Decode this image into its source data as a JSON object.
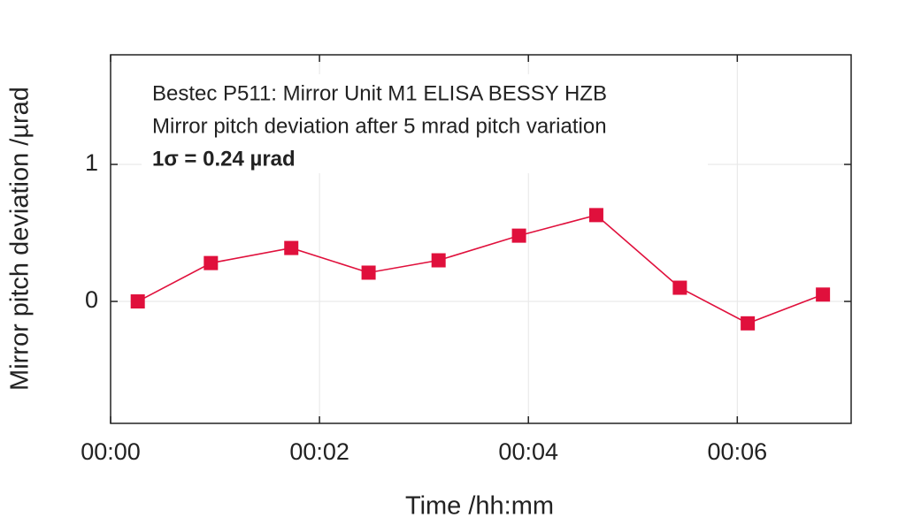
{
  "chart_data": {
    "type": "line",
    "annotations": [
      "Bestec P511: Mirror Unit M1 ELISA BESSY HZB",
      "Mirror pitch deviation after 5 mrad pitch variation",
      "1σ = 0.24 µrad"
    ],
    "xlabel": "Time /hh:mm",
    "ylabel": "Mirror pitch deviation /µrad",
    "x": [
      0.26,
      0.96,
      1.73,
      2.47,
      3.14,
      3.91,
      4.65,
      5.45,
      6.1,
      6.82
    ],
    "series": [
      {
        "color": "#e0103c",
        "values": [
          0,
          0.28,
          0.39,
          0.21,
          0.3,
          0.48,
          0.63,
          0.1,
          -0.16,
          0.05
        ]
      }
    ],
    "xlim": [
      0,
      7.09
    ],
    "ylim": [
      -0.89,
      1.8
    ],
    "xticks": [
      {
        "value": 0,
        "label": "00:00"
      },
      {
        "value": 2,
        "label": "00:02"
      },
      {
        "value": 4,
        "label": "00:04"
      },
      {
        "value": 6,
        "label": "00:06"
      }
    ],
    "yticks": [
      0,
      1
    ],
    "grid": true
  }
}
